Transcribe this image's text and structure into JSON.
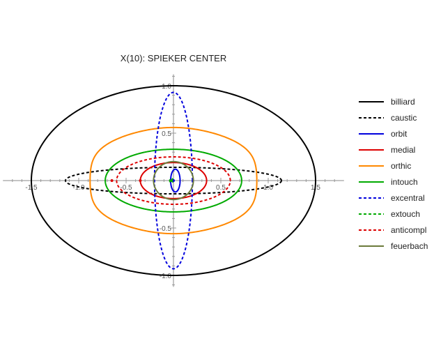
{
  "chart_data": {
    "type": "line",
    "title": "X(10): SPIEKER CENTER",
    "xlabel": "",
    "ylabel": "",
    "xlim": [
      -1.8,
      1.8
    ],
    "ylim": [
      -1.12,
      1.12
    ],
    "x_ticks": [
      {
        "value": -1.5,
        "label": "-1.5"
      },
      {
        "value": -1.0,
        "label": "-1.0"
      },
      {
        "value": -0.5,
        "label": "-0.5"
      },
      {
        "value": 0.5,
        "label": "0.5"
      },
      {
        "value": 1.0,
        "label": "1.0"
      },
      {
        "value": 1.5,
        "label": "1.5"
      }
    ],
    "y_ticks": [
      {
        "value": 1.0,
        "label": "1.0"
      },
      {
        "value": 0.5,
        "label": "0.5"
      },
      {
        "value": -0.5,
        "label": "-0.5"
      },
      {
        "value": -1.0,
        "label": "-1.0"
      }
    ],
    "grid": false,
    "legend_position": "right",
    "series": [
      {
        "name": "billiard",
        "color": "#000000",
        "dash": false,
        "shape": "ellipse",
        "a": 1.5,
        "b": 1.0
      },
      {
        "name": "caustic",
        "color": "#000000",
        "dash": true,
        "shape": "ellipse",
        "a": 1.14,
        "b": 0.14
      },
      {
        "name": "orbit",
        "color": "#0000dd",
        "dash": false,
        "shape": "ellipse",
        "a": 0.05,
        "b": 0.12,
        "cx": 0.02
      },
      {
        "name": "medial",
        "color": "#dd0000",
        "dash": false,
        "shape": "ellipse",
        "a": 0.35,
        "b": 0.19
      },
      {
        "name": "orthic",
        "color": "#ff8800",
        "dash": false,
        "shape": "wavy",
        "a": 0.88,
        "b": 0.56,
        "amp": 0.08
      },
      {
        "name": "intouch",
        "color": "#00aa00",
        "dash": false,
        "shape": "ellipse",
        "a": 0.72,
        "b": 0.33
      },
      {
        "name": "excentral",
        "color": "#0000dd",
        "dash": true,
        "shape": "ellipse",
        "a": 0.2,
        "b": 0.93
      },
      {
        "name": "extouch",
        "color": "#00aa00",
        "dash": true,
        "shape": "ellipse",
        "a": 0.02,
        "b": 0.02,
        "cx": -0.02
      },
      {
        "name": "anticompl",
        "color": "#dd0000",
        "dash": true,
        "shape": "ellipse",
        "a": 0.6,
        "b": 0.25
      },
      {
        "name": "feuerbach",
        "color": "#6b7a3a",
        "dash": false,
        "shape": "ellipse",
        "a": 0.21,
        "b": 0.2
      }
    ]
  }
}
